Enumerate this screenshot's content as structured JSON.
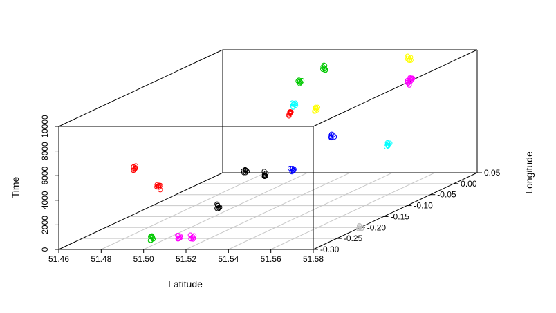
{
  "chart_data": {
    "type": "scatter",
    "projection": "3d",
    "xlabel": "Latitude",
    "ylabel": "Longitude",
    "zlabel": "Time",
    "xlim": [
      51.46,
      51.58
    ],
    "ylim": [
      -0.3,
      0.05
    ],
    "zlim": [
      0,
      10000
    ],
    "x_ticks": [
      "51.46",
      "51.48",
      "51.50",
      "51.52",
      "51.54",
      "51.56",
      "51.58"
    ],
    "y_ticks": [
      "-0.30",
      "-0.25",
      "-0.20",
      "-0.15",
      "-0.10",
      "-0.05",
      "0.00",
      "0.05"
    ],
    "z_ticks": [
      "0",
      "2000",
      "4000",
      "6000",
      "8000",
      "10000"
    ],
    "grid": "floor",
    "marker": "open-circle",
    "series": [
      {
        "color": "#ff0000",
        "points": [
          [
            51.496,
            -0.3,
            6600
          ],
          [
            51.507,
            -0.3,
            5060
          ],
          [
            51.514,
            -0.05,
            6620
          ]
        ]
      },
      {
        "color": "#00c800",
        "points": [
          [
            51.504,
            -0.3,
            920
          ],
          [
            51.513,
            -0.025,
            8750
          ],
          [
            51.522,
            -0.015,
            9690
          ]
        ]
      },
      {
        "color": "#ff00ff",
        "points": [
          [
            51.517,
            -0.3,
            1080
          ],
          [
            51.523,
            -0.3,
            1010
          ],
          [
            51.57,
            -0.05,
            9060
          ],
          [
            51.57,
            -0.045,
            9200
          ]
        ]
      },
      {
        "color": "#000000",
        "points": [
          [
            51.52,
            -0.23,
            2250
          ],
          [
            51.548,
            -0.3,
            6430
          ],
          [
            51.557,
            -0.3,
            6160
          ]
        ]
      },
      {
        "color": "#0000ff",
        "points": [
          [
            51.57,
            -0.3,
            6540
          ],
          [
            51.578,
            -0.25,
            8260
          ]
        ]
      },
      {
        "color": "#00ffff",
        "points": [
          [
            51.54,
            -0.16,
            9260
          ],
          [
            51.58,
            -0.14,
            5610
          ]
        ]
      },
      {
        "color": "#ffff00",
        "points": [
          [
            51.535,
            -0.09,
            7600
          ],
          [
            51.548,
            0.05,
            9350
          ]
        ]
      },
      {
        "color": "#c0c0c0",
        "points": [
          [
            51.58,
            -0.2,
            0
          ]
        ]
      }
    ]
  }
}
